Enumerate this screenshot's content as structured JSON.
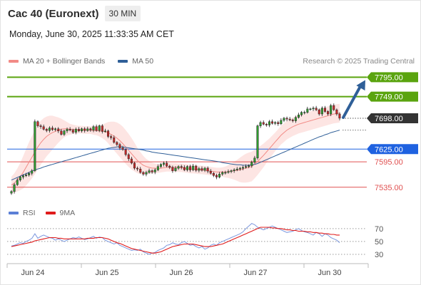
{
  "header": {
    "title": "Cac 40 (Euronext)",
    "timeframe": "30 MIN",
    "datetime": "Monday, June 30, 2025 11:33:35 AM CET"
  },
  "legend": {
    "main": [
      {
        "label": "MA 20 + Bollinger Bands",
        "color": "#f28b86"
      },
      {
        "label": "MA 50",
        "color": "#2f5f98"
      }
    ],
    "rsi": [
      {
        "label": "RSI",
        "color": "#5b7fd6"
      },
      {
        "label": "9MA",
        "color": "#e01b1b"
      }
    ]
  },
  "credit": "Research © 2025 Trading Central",
  "chart_data": [
    {
      "type": "candlestick",
      "x_labels": [
        "Jun 24",
        "Jun 25",
        "Jun 26",
        "Jun 27",
        "Jun 30"
      ],
      "price_range": [
        7506,
        7809
      ],
      "levels": [
        {
          "value": 7795.0,
          "label": "7795.00",
          "style": "resistance",
          "color": "#5aa40f"
        },
        {
          "value": 7749.0,
          "label": "7749.00",
          "style": "resistance",
          "color": "#5aa40f"
        },
        {
          "value": 7698.0,
          "label": "7698.00",
          "style": "last",
          "color": "#333333"
        },
        {
          "value": 7625.0,
          "label": "7625.00",
          "style": "pivot",
          "color": "#1f62e0"
        },
        {
          "value": 7595.0,
          "label": "7595.00",
          "style": "support",
          "color": "#e05050"
        },
        {
          "value": 7535.0,
          "label": "7535.00",
          "style": "support",
          "color": "#e05050"
        }
      ],
      "closes": [
        7525,
        7541,
        7552,
        7559,
        7562,
        7564,
        7568,
        7574,
        7690,
        7680,
        7678,
        7672,
        7669,
        7675,
        7671,
        7673,
        7668,
        7660,
        7668,
        7672,
        7670,
        7665,
        7672,
        7668,
        7673,
        7669,
        7673,
        7670,
        7678,
        7669,
        7680,
        7667,
        7668,
        7655,
        7652,
        7641,
        7636,
        7628,
        7624,
        7612,
        7602,
        7592,
        7580,
        7578,
        7570,
        7566,
        7570,
        7574,
        7571,
        7576,
        7584,
        7589,
        7592,
        7585,
        7582,
        7574,
        7580,
        7584,
        7582,
        7576,
        7584,
        7576,
        7585,
        7575,
        7579,
        7575,
        7580,
        7573,
        7568,
        7563,
        7559,
        7566,
        7570,
        7570,
        7572,
        7574,
        7576,
        7578,
        7580,
        7582,
        7584,
        7586,
        7594,
        7604,
        7680,
        7688,
        7684,
        7682,
        7690,
        7686,
        7688,
        7685,
        7693,
        7698,
        7696,
        7694,
        7692,
        7700,
        7706,
        7712,
        7712,
        7720,
        7720,
        7722,
        7718,
        7708,
        7722,
        7714,
        7708,
        7728,
        7718,
        7708,
        7698
      ],
      "ma50": [
        7552,
        7555,
        7558,
        7561,
        7564,
        7567,
        7570,
        7573,
        7576,
        7578,
        7580,
        7583,
        7585,
        7587,
        7589,
        7591,
        7593,
        7595,
        7597,
        7599,
        7601,
        7603,
        7605,
        7607,
        7609,
        7611,
        7613,
        7615,
        7617,
        7619,
        7621,
        7623,
        7625,
        7627,
        7628,
        7629,
        7630,
        7631,
        7630,
        7629,
        7628,
        7627,
        7626,
        7625,
        7624,
        7623,
        7621,
        7620,
        7618,
        7617,
        7616,
        7615,
        7614,
        7613,
        7612,
        7611,
        7610,
        7609,
        7608,
        7607,
        7606,
        7605,
        7604,
        7603,
        7602,
        7601,
        7600,
        7599,
        7598,
        7597,
        7596,
        7595,
        7593,
        7592,
        7591,
        7590,
        7589,
        7588,
        7588,
        7587,
        7587,
        7587,
        7588,
        7589,
        7591,
        7594,
        7597,
        7600,
        7603,
        7606,
        7609,
        7612,
        7615,
        7618,
        7621,
        7624,
        7627,
        7630,
        7633,
        7636,
        7639,
        7642,
        7645,
        7648,
        7651,
        7654,
        7656,
        7659,
        7661,
        7664,
        7666,
        7668,
        7670
      ],
      "ma20": [
        7540,
        7545,
        7552,
        7560,
        7570,
        7582,
        7594,
        7606,
        7618,
        7630,
        7640,
        7648,
        7655,
        7660,
        7664,
        7667,
        7670,
        7672,
        7673,
        7673,
        7672,
        7672,
        7671,
        7671,
        7671,
        7670,
        7670,
        7670,
        7669,
        7669,
        7668,
        7667,
        7666,
        7664,
        7660,
        7656,
        7651,
        7645,
        7638,
        7630,
        7622,
        7614,
        7606,
        7598,
        7592,
        7587,
        7584,
        7582,
        7580,
        7580,
        7579,
        7580,
        7581,
        7582,
        7582,
        7582,
        7582,
        7581,
        7581,
        7580,
        7579,
        7578,
        7578,
        7577,
        7576,
        7576,
        7575,
        7574,
        7573,
        7572,
        7571,
        7571,
        7571,
        7571,
        7572,
        7573,
        7574,
        7575,
        7576,
        7578,
        7580,
        7582,
        7584,
        7590,
        7596,
        7603,
        7610,
        7618,
        7626,
        7634,
        7642,
        7650,
        7658,
        7664,
        7670,
        7674,
        7678,
        7681,
        7684,
        7686,
        7688,
        7690,
        7692,
        7694,
        7696,
        7698,
        7700,
        7702,
        7704,
        7706,
        7708,
        7709,
        7710
      ],
      "bb_width": [
        40,
        46,
        54,
        64,
        76,
        86,
        94,
        100,
        104,
        106,
        104,
        100,
        94,
        88,
        80,
        70,
        60,
        50,
        40,
        32,
        26,
        22,
        20,
        18,
        18,
        18,
        18,
        18,
        20,
        22,
        26,
        32,
        40,
        50,
        60,
        68,
        74,
        78,
        80,
        80,
        78,
        74,
        68,
        60,
        52,
        44,
        36,
        30,
        26,
        22,
        20,
        20,
        20,
        20,
        20,
        20,
        20,
        20,
        20,
        20,
        20,
        20,
        20,
        20,
        20,
        20,
        20,
        20,
        20,
        20,
        20,
        20,
        22,
        26,
        30,
        36,
        42,
        50,
        58,
        64,
        68,
        70,
        70,
        68,
        64,
        60,
        56,
        52,
        48,
        46,
        44,
        44,
        44,
        44,
        44,
        44,
        44,
        44,
        44,
        44,
        44,
        44,
        44,
        44,
        44,
        44,
        44,
        44,
        44,
        44,
        44,
        44,
        44
      ]
    },
    {
      "type": "line",
      "title": "RSI",
      "y_ticks": [
        70,
        50,
        30
      ],
      "ylim": [
        20,
        82
      ],
      "rsi": [
        43,
        44,
        46,
        48,
        47,
        50,
        52,
        55,
        62,
        55,
        58,
        60,
        58,
        56,
        55,
        52,
        54,
        52,
        50,
        52,
        54,
        56,
        55,
        57,
        55,
        53,
        54,
        56,
        58,
        55,
        57,
        56,
        52,
        50,
        48,
        46,
        48,
        44,
        42,
        40,
        38,
        36,
        37,
        36,
        38,
        34,
        32,
        30,
        32,
        33,
        36,
        38,
        40,
        44,
        45,
        48,
        46,
        45,
        48,
        50,
        47,
        44,
        45,
        42,
        40,
        42,
        38,
        40,
        44,
        46,
        44,
        48,
        50,
        52,
        54,
        56,
        58,
        60,
        62,
        65,
        70,
        74,
        78,
        76,
        72,
        70,
        68,
        70,
        72,
        74,
        72,
        70,
        68,
        66,
        64,
        65,
        66,
        68,
        70,
        67,
        65,
        64,
        62,
        60,
        64,
        62,
        58,
        62,
        60,
        56,
        54,
        52,
        48
      ],
      "ma9": [
        42,
        43,
        44,
        45,
        46,
        47,
        48,
        49,
        51,
        52,
        53,
        54,
        55,
        56,
        56,
        56,
        55,
        55,
        54,
        54,
        54,
        54,
        54,
        54,
        54,
        54,
        55,
        55,
        55,
        56,
        56,
        56,
        55,
        54,
        52,
        50,
        48,
        47,
        45,
        43,
        41,
        39,
        38,
        37,
        36,
        35,
        34,
        33,
        32,
        32,
        33,
        34,
        36,
        38,
        40,
        42,
        43,
        44,
        45,
        46,
        46,
        46,
        46,
        45,
        44,
        43,
        42,
        42,
        42,
        43,
        44,
        45,
        46,
        48,
        50,
        52,
        54,
        56,
        58,
        60,
        62,
        64,
        66,
        68,
        70,
        72,
        72,
        72,
        72,
        71,
        71,
        70,
        70,
        69,
        68,
        68,
        67,
        67,
        66,
        66,
        66,
        65,
        65,
        64,
        64,
        63,
        63,
        62,
        62,
        61,
        61,
        60,
        60
      ]
    }
  ]
}
